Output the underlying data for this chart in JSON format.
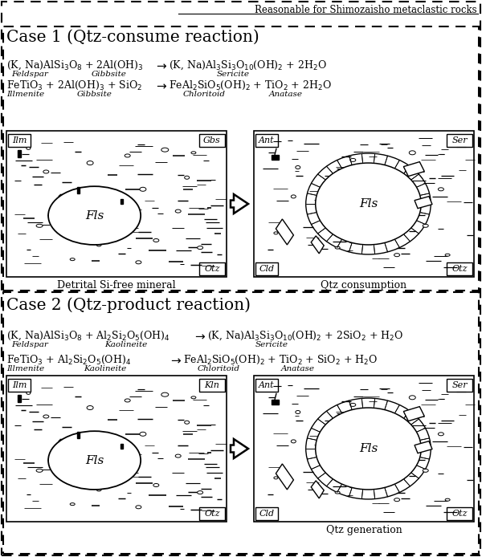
{
  "title_box": "Reasonable for Shimozaisho metaclastic rocks",
  "case1_title": "Case 1 (Qtz-consume reaction)",
  "case2_title": "Case 2 (Qtz-product reaction)",
  "case1_label_left": "Detrital Si-free mineral",
  "case1_label_right": "Qtz consumption",
  "case2_label_right": "Qtz generation",
  "bg_color": "#ffffff",
  "figw": 6.0,
  "figh": 6.94,
  "dpi": 100
}
